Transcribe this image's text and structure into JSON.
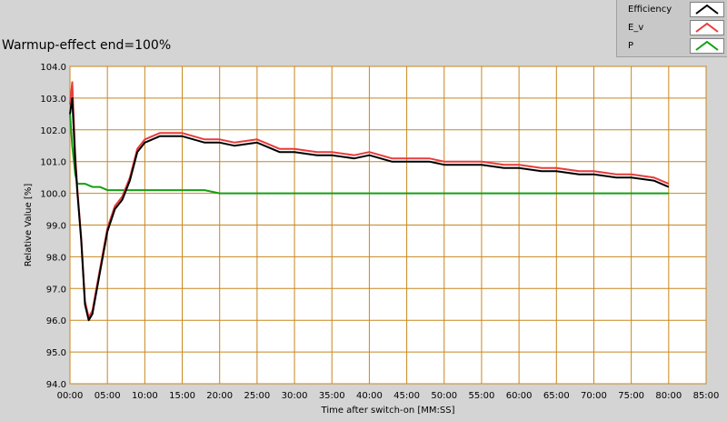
{
  "chart_data": {
    "type": "line",
    "title": "Warmup-effect end=100%",
    "xlabel": "Time after switch-on [MM:SS]",
    "ylabel": "Relative Value [%]",
    "xlim": [
      0,
      85
    ],
    "ylim": [
      94.0,
      104.0
    ],
    "x_ticks": [
      "00:00",
      "05:00",
      "10:00",
      "15:00",
      "20:00",
      "25:00",
      "30:00",
      "35:00",
      "40:00",
      "45:00",
      "50:00",
      "55:00",
      "60:00",
      "65:00",
      "70:00",
      "75:00",
      "80:00",
      "85:00"
    ],
    "y_ticks": [
      "94.0",
      "95.0",
      "96.0",
      "97.0",
      "98.0",
      "99.0",
      "100.0",
      "101.0",
      "102.0",
      "103.0",
      "104.0"
    ],
    "grid": true,
    "legend_position": "top-right",
    "series": [
      {
        "name": "Efficiency",
        "color": "#000000",
        "x": [
          0,
          0.3,
          0.7,
          1,
          1.5,
          2,
          2.5,
          3,
          4,
          5,
          6,
          7,
          8,
          9,
          10,
          12,
          15,
          18,
          20,
          22,
          25,
          28,
          30,
          33,
          35,
          38,
          40,
          43,
          45,
          48,
          50,
          53,
          55,
          58,
          60,
          63,
          65,
          68,
          70,
          73,
          75,
          78,
          80
        ],
        "y": [
          102.5,
          103.0,
          101.0,
          100.0,
          98.5,
          96.5,
          96.0,
          96.2,
          97.5,
          98.8,
          99.5,
          99.8,
          100.4,
          101.3,
          101.6,
          101.8,
          101.8,
          101.6,
          101.6,
          101.5,
          101.6,
          101.3,
          101.3,
          101.2,
          101.2,
          101.1,
          101.2,
          101.0,
          101.0,
          101.0,
          100.9,
          100.9,
          100.9,
          100.8,
          100.8,
          100.7,
          100.7,
          100.6,
          100.6,
          100.5,
          100.5,
          100.4,
          100.2
        ]
      },
      {
        "name": "E_v",
        "color": "#e83c3c",
        "x": [
          0,
          0.3,
          0.7,
          1,
          1.5,
          2,
          2.5,
          3,
          4,
          5,
          6,
          7,
          8,
          9,
          10,
          12,
          15,
          18,
          20,
          22,
          25,
          28,
          30,
          33,
          35,
          38,
          40,
          43,
          45,
          48,
          50,
          53,
          55,
          58,
          60,
          63,
          65,
          68,
          70,
          73,
          75,
          78,
          80
        ],
        "y": [
          102.8,
          103.5,
          101.2,
          100.1,
          98.6,
          96.6,
          96.1,
          96.3,
          97.6,
          98.9,
          99.6,
          99.9,
          100.5,
          101.4,
          101.7,
          101.9,
          101.9,
          101.7,
          101.7,
          101.6,
          101.7,
          101.4,
          101.4,
          101.3,
          101.3,
          101.2,
          101.3,
          101.1,
          101.1,
          101.1,
          101.0,
          101.0,
          101.0,
          100.9,
          100.9,
          100.8,
          100.8,
          100.7,
          100.7,
          100.6,
          100.6,
          100.5,
          100.3
        ]
      },
      {
        "name": "P",
        "color": "#14a014",
        "x": [
          0,
          0.3,
          0.7,
          1,
          1.5,
          2,
          3,
          4,
          5,
          7,
          9,
          10,
          12,
          15,
          18,
          20,
          22,
          25,
          28,
          30,
          33,
          35,
          38,
          40,
          43,
          45,
          48,
          50,
          53,
          55,
          58,
          60,
          63,
          65,
          68,
          70,
          73,
          75,
          78,
          80
        ],
        "y": [
          102.5,
          101.5,
          100.6,
          100.3,
          100.3,
          100.3,
          100.2,
          100.2,
          100.1,
          100.1,
          100.1,
          100.1,
          100.1,
          100.1,
          100.1,
          100.0,
          100.0,
          100.0,
          100.0,
          100.0,
          100.0,
          100.0,
          100.0,
          100.0,
          100.0,
          100.0,
          100.0,
          100.0,
          100.0,
          100.0,
          100.0,
          100.0,
          100.0,
          100.0,
          100.0,
          100.0,
          100.0,
          100.0,
          100.0,
          100.0
        ]
      }
    ]
  }
}
